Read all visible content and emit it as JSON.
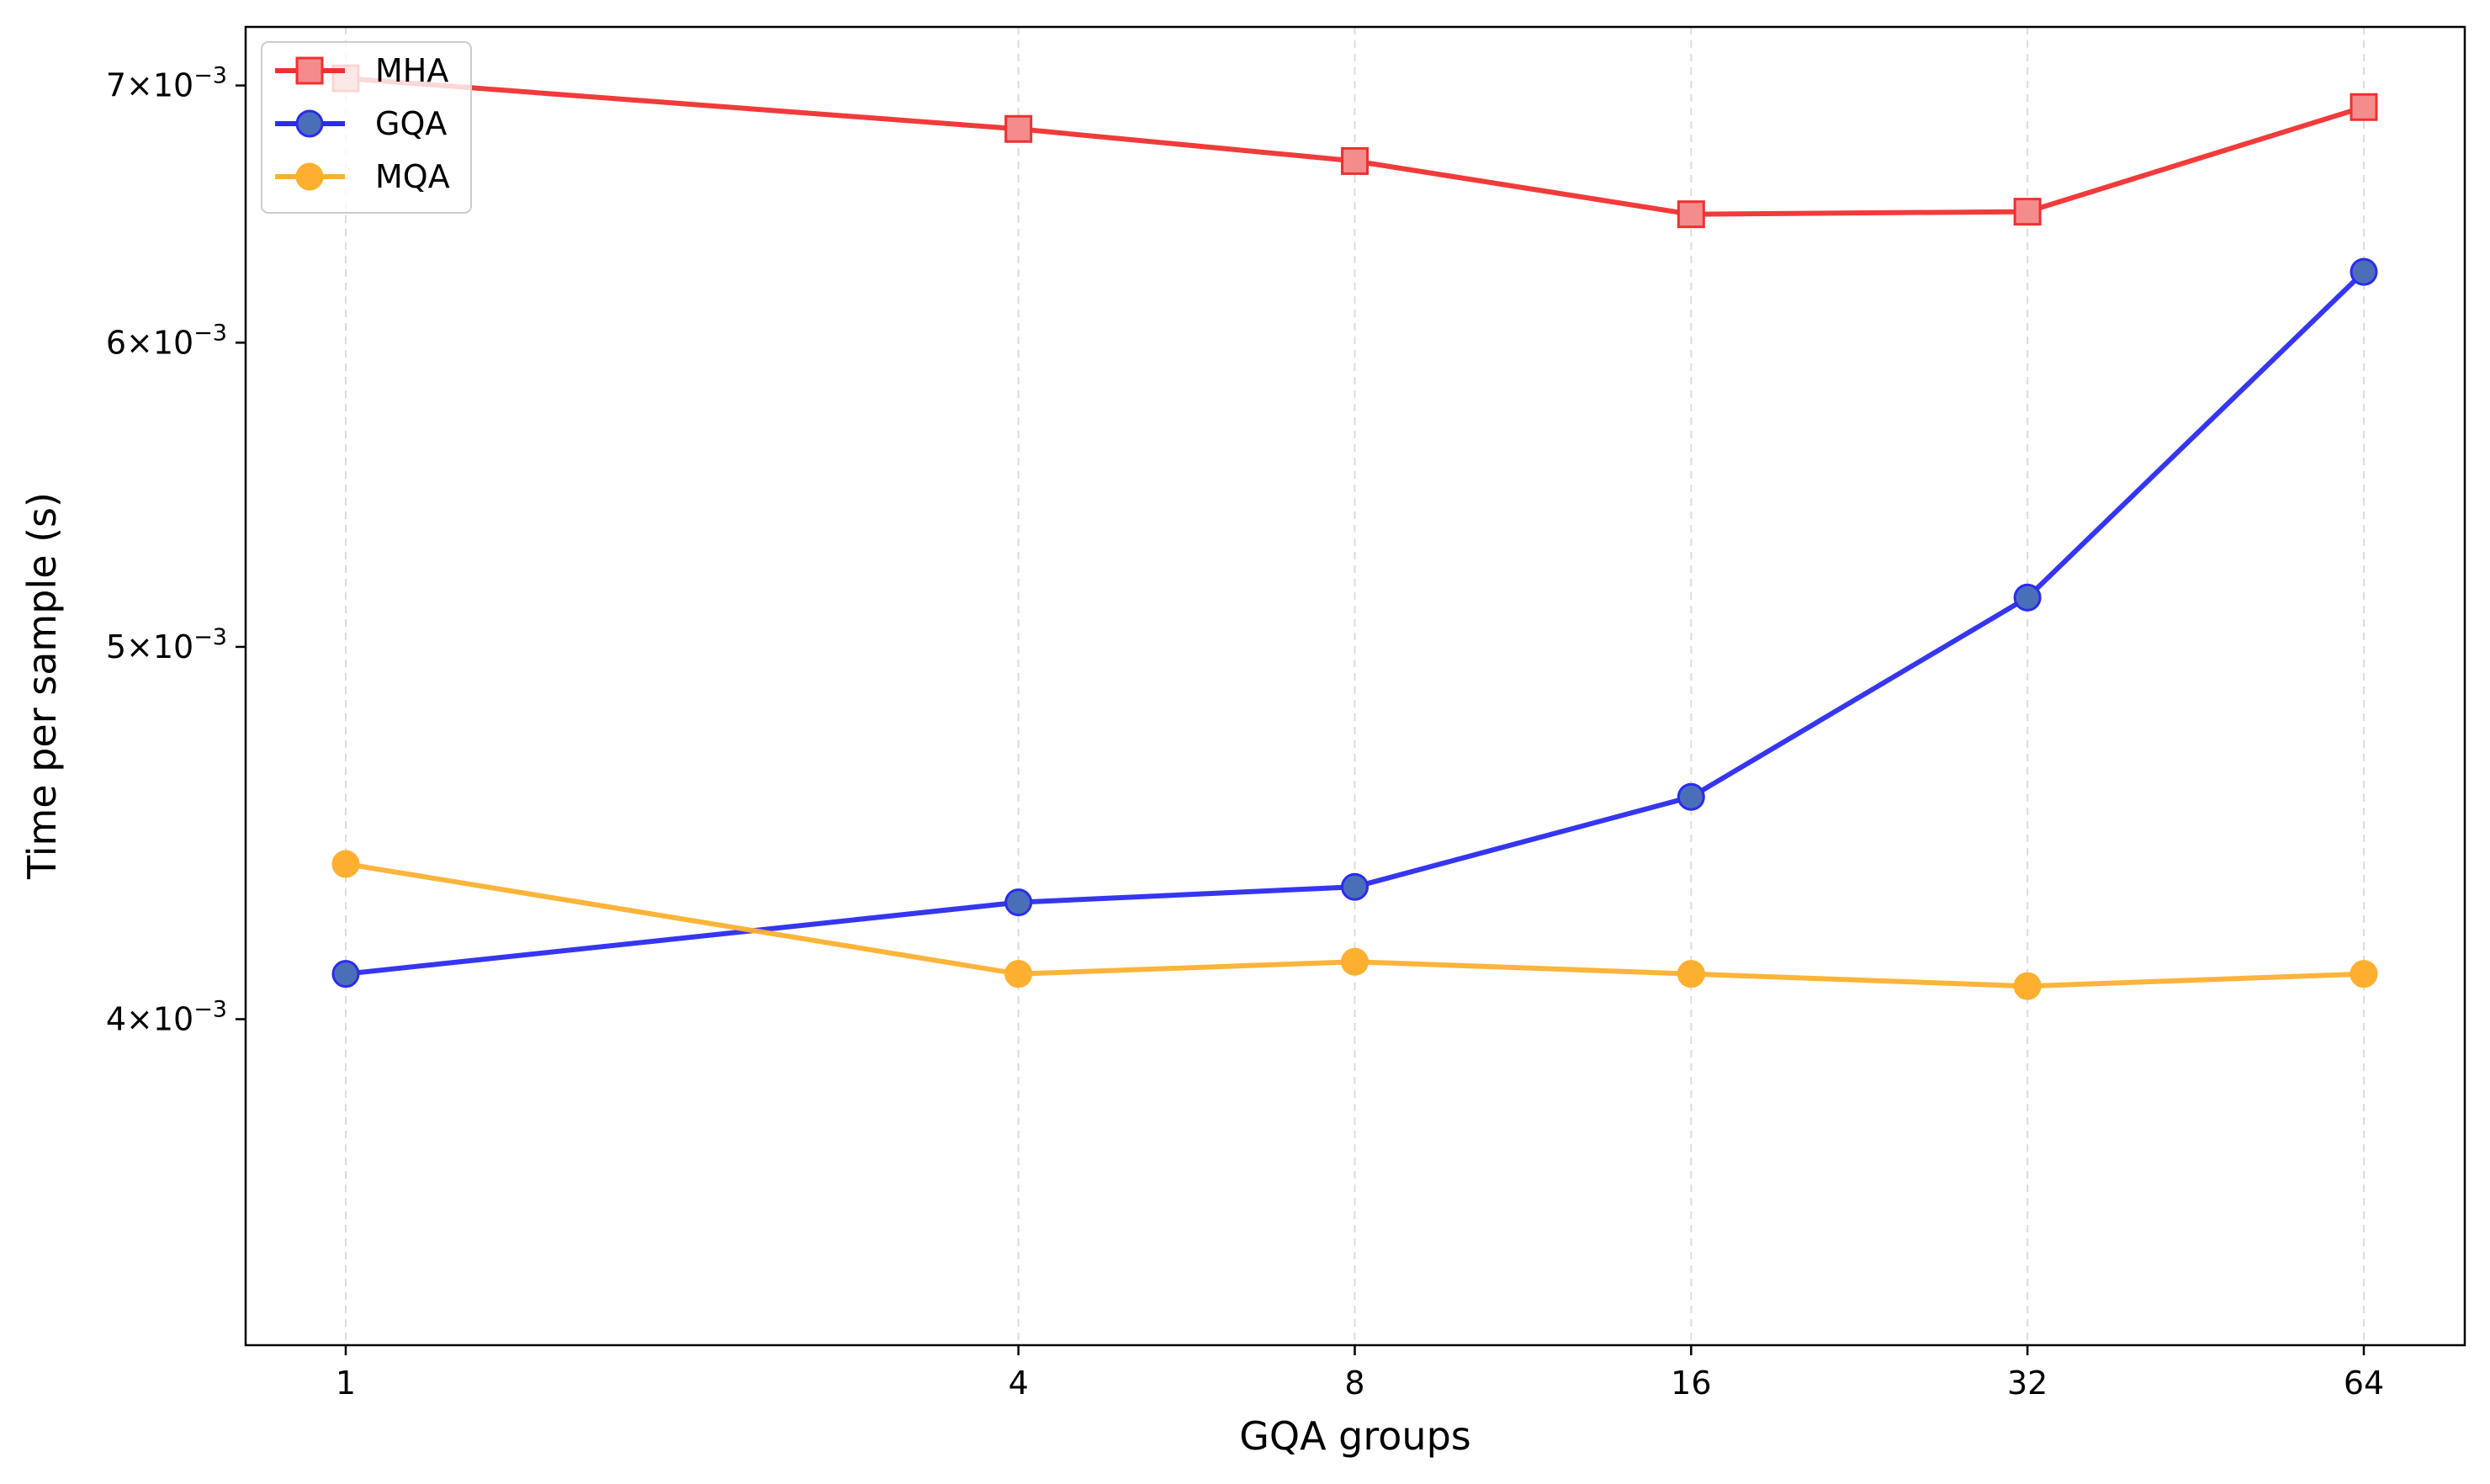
{
  "chart_data": {
    "type": "line",
    "title": "",
    "xlabel": "GQA groups",
    "ylabel": "Time per sample (s)",
    "x_scale": "log2",
    "y_scale": "log",
    "x": [
      1,
      4,
      8,
      16,
      32,
      64
    ],
    "x_tick_labels": [
      "1",
      "4",
      "8",
      "16",
      "32",
      "64"
    ],
    "y_ticks": [
      {
        "value": 0.004,
        "mant": "4",
        "exp": "−3"
      },
      {
        "value": 0.005,
        "mant": "5",
        "exp": "−3"
      },
      {
        "value": 0.006,
        "mant": "6",
        "exp": "−3"
      },
      {
        "value": 0.007,
        "mant": "7",
        "exp": "−3"
      }
    ],
    "y_tick_times": "×10",
    "ylim": [
      0.00329,
      0.00725
    ],
    "grid": "vertical dashed",
    "legend_position": "upper left",
    "series": [
      {
        "name": "MHA",
        "color": "#f03030",
        "marker": "square",
        "values": [
          0.00703,
          0.00682,
          0.00669,
          0.00648,
          0.00649,
          0.00691
        ]
      },
      {
        "name": "GQA",
        "color": "#2b2bf0",
        "marker": "circle",
        "values": [
          0.00411,
          0.00429,
          0.00433,
          0.00457,
          0.00515,
          0.00626
        ]
      },
      {
        "name": "MQA",
        "color": "#fdb02f",
        "marker": "circle",
        "values": [
          0.00439,
          0.00411,
          0.00414,
          0.00411,
          0.00408,
          0.00411
        ]
      }
    ]
  }
}
